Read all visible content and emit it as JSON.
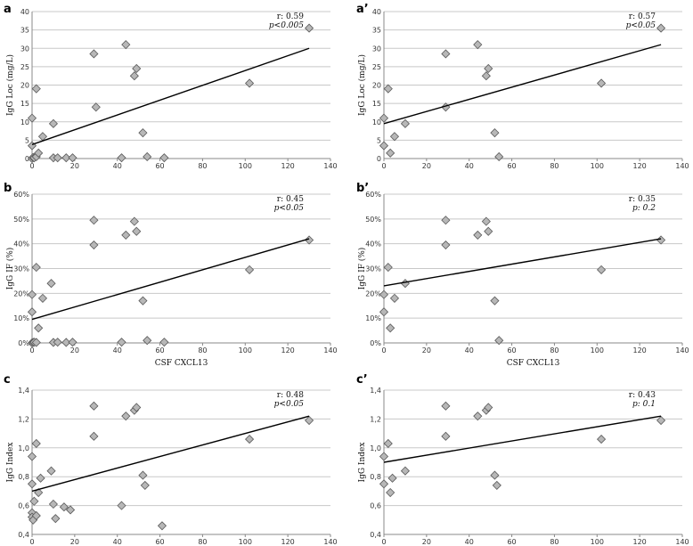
{
  "chart_data": [
    {
      "id": "a",
      "label": "a",
      "type": "scatter",
      "ylabel": "IgG Loc (mg/L)",
      "xlabel": "",
      "xlim": [
        0,
        140
      ],
      "ylim": [
        0,
        40
      ],
      "xticks": [
        0,
        20,
        40,
        60,
        80,
        100,
        120,
        140
      ],
      "yticks": [
        0,
        5,
        10,
        15,
        20,
        25,
        30,
        35,
        40
      ],
      "ytick_labels": [
        "0",
        "5",
        "10",
        "15",
        "20",
        "25",
        "30",
        "35",
        "40"
      ],
      "stat_r": "r: 0.59",
      "stat_p": "p<0.005",
      "points": [
        [
          0,
          0
        ],
        [
          0.5,
          0.3
        ],
        [
          1,
          0.2
        ],
        [
          2,
          0.5
        ],
        [
          3,
          1.5
        ],
        [
          0,
          3.5
        ],
        [
          0,
          11
        ],
        [
          2,
          19
        ],
        [
          5,
          6
        ],
        [
          10,
          9.5
        ],
        [
          10,
          0.2
        ],
        [
          12,
          0.2
        ],
        [
          16,
          0.2
        ],
        [
          19,
          0.2
        ],
        [
          29,
          28.5
        ],
        [
          30,
          14
        ],
        [
          42,
          0.2
        ],
        [
          44,
          31
        ],
        [
          48,
          22.5
        ],
        [
          49,
          24.5
        ],
        [
          52,
          7
        ],
        [
          54,
          0.5
        ],
        [
          62,
          0.2
        ],
        [
          102,
          20.5
        ],
        [
          130,
          35.5
        ]
      ],
      "fit": [
        [
          0,
          3.8
        ],
        [
          130,
          30
        ]
      ]
    },
    {
      "id": "a2",
      "label": "a’",
      "type": "scatter",
      "ylabel": "IgG Loc (mg/L)",
      "xlabel": "",
      "xlim": [
        0,
        140
      ],
      "ylim": [
        0,
        40
      ],
      "xticks": [
        0,
        20,
        40,
        60,
        80,
        100,
        120,
        140
      ],
      "yticks": [
        0,
        5,
        10,
        15,
        20,
        25,
        30,
        35,
        40
      ],
      "ytick_labels": [
        "0",
        "5",
        "10",
        "15",
        "20",
        "25",
        "30",
        "35",
        "40"
      ],
      "stat_r": "r: 0.57",
      "stat_p": "p<0.05",
      "points": [
        [
          0,
          3.5
        ],
        [
          0,
          11
        ],
        [
          2,
          19
        ],
        [
          3,
          1.5
        ],
        [
          5,
          6
        ],
        [
          10,
          9.5
        ],
        [
          29,
          28.5
        ],
        [
          29,
          14
        ],
        [
          44,
          31
        ],
        [
          48,
          22.5
        ],
        [
          49,
          24.5
        ],
        [
          52,
          7
        ],
        [
          54,
          0.5
        ],
        [
          102,
          20.5
        ],
        [
          130,
          35.5
        ]
      ],
      "fit": [
        [
          0,
          9.5
        ],
        [
          130,
          31
        ]
      ]
    },
    {
      "id": "b",
      "label": "b",
      "type": "scatter",
      "ylabel": "IgG IF (%)",
      "xlabel": "CSF CXCL13",
      "xlim": [
        0,
        140
      ],
      "ylim": [
        0,
        60
      ],
      "xticks": [
        0,
        20,
        40,
        60,
        80,
        100,
        120,
        140
      ],
      "yticks": [
        0,
        10,
        20,
        30,
        40,
        50,
        60
      ],
      "ytick_labels": [
        "0%",
        "10%",
        "20%",
        "30%",
        "40%",
        "50%",
        "60%"
      ],
      "stat_r": "r: 0.45",
      "stat_p": "p<0.05",
      "points": [
        [
          0,
          0
        ],
        [
          0.5,
          0.2
        ],
        [
          1,
          0.3
        ],
        [
          2,
          0.2
        ],
        [
          0,
          12.5
        ],
        [
          0,
          19.5
        ],
        [
          2,
          30.5
        ],
        [
          3,
          6
        ],
        [
          5,
          18
        ],
        [
          9,
          24
        ],
        [
          10,
          0.2
        ],
        [
          12,
          0.3
        ],
        [
          16,
          0.2
        ],
        [
          19,
          0.3
        ],
        [
          29,
          49.5
        ],
        [
          29,
          39.5
        ],
        [
          42,
          0.3
        ],
        [
          44,
          43.5
        ],
        [
          48,
          49
        ],
        [
          49,
          45
        ],
        [
          52,
          17
        ],
        [
          54,
          1
        ],
        [
          62,
          0.3
        ],
        [
          102,
          29.5
        ],
        [
          130,
          41.5
        ]
      ],
      "fit": [
        [
          0,
          9.5
        ],
        [
          130,
          42
        ]
      ]
    },
    {
      "id": "b2",
      "label": "b’",
      "type": "scatter",
      "ylabel": "IgG IF (%)",
      "xlabel": "CSF CXCL13",
      "xlim": [
        0,
        140
      ],
      "ylim": [
        0,
        60
      ],
      "xticks": [
        0,
        20,
        40,
        60,
        80,
        100,
        120,
        140
      ],
      "yticks": [
        0,
        10,
        20,
        30,
        40,
        50,
        60
      ],
      "ytick_labels": [
        "0%",
        "10%",
        "20%",
        "30%",
        "40%",
        "50%",
        "60%"
      ],
      "stat_r": "r: 0.35",
      "stat_p": "p: 0.2",
      "points": [
        [
          0,
          12.5
        ],
        [
          0,
          19.5
        ],
        [
          2,
          30.5
        ],
        [
          3,
          6
        ],
        [
          5,
          18
        ],
        [
          10,
          24
        ],
        [
          29,
          49.5
        ],
        [
          29,
          39.5
        ],
        [
          44,
          43.5
        ],
        [
          48,
          49
        ],
        [
          49,
          45
        ],
        [
          52,
          17
        ],
        [
          54,
          1
        ],
        [
          102,
          29.5
        ],
        [
          130,
          41.5
        ]
      ],
      "fit": [
        [
          0,
          23
        ],
        [
          130,
          42
        ]
      ]
    },
    {
      "id": "c",
      "label": "c",
      "type": "scatter",
      "ylabel": "IgG Index",
      "xlabel": "",
      "xlim": [
        0,
        140
      ],
      "ylim": [
        0.4,
        1.4
      ],
      "xticks": [
        0,
        20,
        40,
        60,
        80,
        100,
        120,
        140
      ],
      "yticks": [
        0.4,
        0.6,
        0.8,
        1.0,
        1.2,
        1.4
      ],
      "ytick_labels": [
        "0,4",
        "0,6",
        "0,8",
        "1,0",
        "1,2",
        "1,4"
      ],
      "stat_r": "r: 0.48",
      "stat_p": "p<0.05",
      "points": [
        [
          0,
          0.55
        ],
        [
          0,
          0.52
        ],
        [
          0.5,
          0.5
        ],
        [
          1,
          0.63
        ],
        [
          2,
          0.53
        ],
        [
          0,
          0.75
        ],
        [
          0,
          0.94
        ],
        [
          2,
          1.03
        ],
        [
          3,
          0.69
        ],
        [
          4,
          0.79
        ],
        [
          9,
          0.84
        ],
        [
          10,
          0.61
        ],
        [
          11,
          0.51
        ],
        [
          15,
          0.59
        ],
        [
          18,
          0.57
        ],
        [
          29,
          1.29
        ],
        [
          29,
          1.08
        ],
        [
          42,
          0.6
        ],
        [
          44,
          1.22
        ],
        [
          48,
          1.26
        ],
        [
          49,
          1.28
        ],
        [
          52,
          0.81
        ],
        [
          53,
          0.74
        ],
        [
          61,
          0.46
        ],
        [
          102,
          1.06
        ],
        [
          130,
          1.19
        ]
      ],
      "fit": [
        [
          0,
          0.7
        ],
        [
          130,
          1.22
        ]
      ]
    },
    {
      "id": "c2",
      "label": "c’",
      "type": "scatter",
      "ylabel": "IgG Index",
      "xlabel": "",
      "xlim": [
        0,
        140
      ],
      "ylim": [
        0.4,
        1.4
      ],
      "xticks": [
        0,
        20,
        40,
        60,
        80,
        100,
        120,
        140
      ],
      "yticks": [
        0.4,
        0.6,
        0.8,
        1.0,
        1.2,
        1.4
      ],
      "ytick_labels": [
        "0,4",
        "0,6",
        "0,8",
        "1,0",
        "1,2",
        "1,4"
      ],
      "stat_r": "r: 0.43",
      "stat_p": "p: 0.1",
      "points": [
        [
          0,
          0.75
        ],
        [
          0,
          0.94
        ],
        [
          2,
          1.03
        ],
        [
          3,
          0.69
        ],
        [
          4,
          0.79
        ],
        [
          10,
          0.84
        ],
        [
          29,
          1.29
        ],
        [
          29,
          1.08
        ],
        [
          44,
          1.22
        ],
        [
          48,
          1.26
        ],
        [
          49,
          1.28
        ],
        [
          52,
          0.81
        ],
        [
          53,
          0.74
        ],
        [
          102,
          1.06
        ],
        [
          130,
          1.19
        ]
      ],
      "fit": [
        [
          0,
          0.9
        ],
        [
          130,
          1.22
        ]
      ]
    }
  ]
}
